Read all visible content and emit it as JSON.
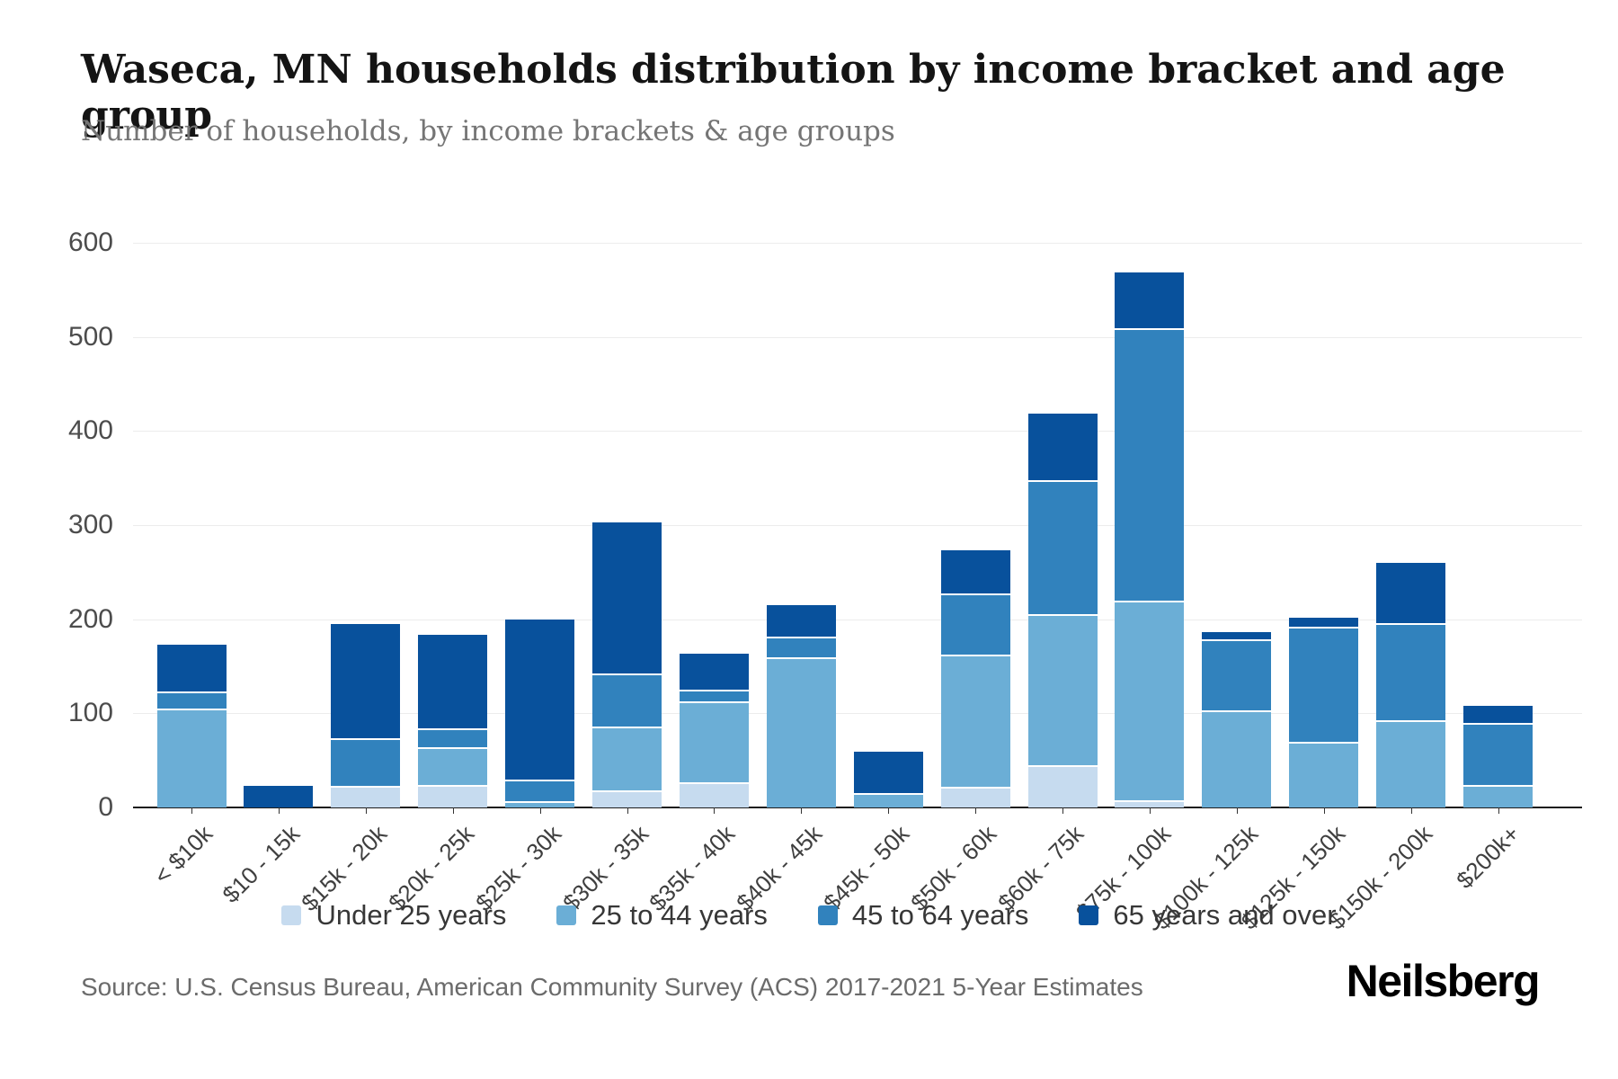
{
  "header": {
    "title": "Waseca, MN households distribution by income bracket and age group",
    "subtitle": "Number of households, by income brackets & age groups"
  },
  "chart_data": {
    "type": "bar",
    "stacked": true,
    "title": "Waseca, MN households distribution by income bracket and age group",
    "xlabel": "",
    "ylabel": "Number of households",
    "categories": [
      "< $10k",
      "$10 - 15k",
      "$15k - 20k",
      "$20k - 25k",
      "$25k - 30k",
      "$30k - 35k",
      "$35k - 40k",
      "$40k - 45k",
      "$45k - 50k",
      "$50k - 60k",
      "$60k - 75k",
      "$75k - 100k",
      "$100k - 125k",
      "$125k - 150k",
      "$150k - 200k",
      "$200k+"
    ],
    "series": [
      {
        "name": "Under 25 years",
        "color": "#c6dbef",
        "values": [
          0,
          0,
          23,
          24,
          0,
          18,
          27,
          0,
          0,
          22,
          45,
          8,
          0,
          0,
          0,
          0
        ]
      },
      {
        "name": "25 to 44 years",
        "color": "#6baed6",
        "values": [
          105,
          0,
          0,
          40,
          7,
          68,
          86,
          160,
          15,
          140,
          160,
          212,
          103,
          70,
          93,
          24
        ]
      },
      {
        "name": "45 to 64 years",
        "color": "#3182bd",
        "values": [
          18,
          0,
          51,
          20,
          23,
          56,
          12,
          22,
          0,
          65,
          143,
          289,
          76,
          122,
          103,
          66
        ]
      },
      {
        "name": "65 years and over",
        "color": "#08519c",
        "values": [
          52,
          25,
          123,
          101,
          172,
          163,
          40,
          35,
          46,
          48,
          72,
          61,
          9,
          12,
          66,
          20
        ]
      }
    ],
    "totals": [
      175,
      25,
      197,
      185,
      202,
      305,
      165,
      217,
      61,
      275,
      420,
      570,
      188,
      204,
      262,
      110
    ],
    "ylim": [
      0,
      600
    ],
    "yticks": [
      0,
      100,
      200,
      300,
      400,
      500,
      600
    ],
    "grid": "horizontal",
    "legend_position": "bottom"
  },
  "footer": {
    "source": "Source: U.S. Census Bureau, American Community Survey (ACS) 2017-2021 5-Year Estimates",
    "brand": "Neilsberg"
  }
}
